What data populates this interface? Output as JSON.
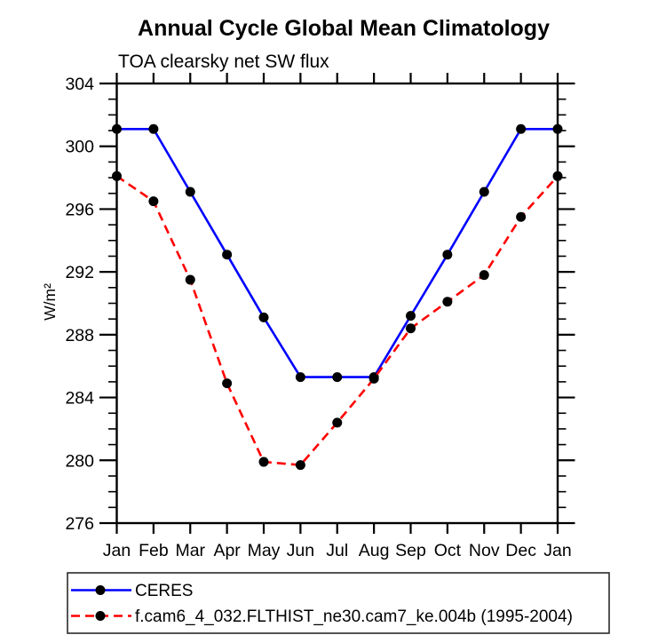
{
  "chart_data": {
    "type": "line",
    "title": "Annual Cycle Global Mean Climatology",
    "subtitle": "TOA clearsky net SW flux",
    "ylabel": "W/m²",
    "xlabel": "",
    "categories": [
      "Jan",
      "Feb",
      "Mar",
      "Apr",
      "May",
      "Jun",
      "Jul",
      "Aug",
      "Sep",
      "Oct",
      "Nov",
      "Dec",
      "Jan"
    ],
    "ylim": [
      276,
      304
    ],
    "y_major_step": 4,
    "y_minor_step": 1,
    "grid": false,
    "legend_position": "bottom",
    "axis_color": "#000000",
    "marker_color": "#000000",
    "series": [
      {
        "name": "CERES",
        "color": "#0000ff",
        "line_style": "solid",
        "marker": "circle",
        "values": [
          301.1,
          301.1,
          297.1,
          293.1,
          289.1,
          285.3,
          285.3,
          285.3,
          289.2,
          293.1,
          297.1,
          301.1,
          301.1
        ]
      },
      {
        "name": "f.cam6_4_032.FLTHIST_ne30.cam7_ke.004b (1995-2004)",
        "color": "#ff0000",
        "line_style": "dashed",
        "marker": "circle",
        "values": [
          298.1,
          296.5,
          291.5,
          284.9,
          279.9,
          279.7,
          282.4,
          285.2,
          288.4,
          290.1,
          291.8,
          295.5,
          298.1
        ]
      }
    ]
  }
}
